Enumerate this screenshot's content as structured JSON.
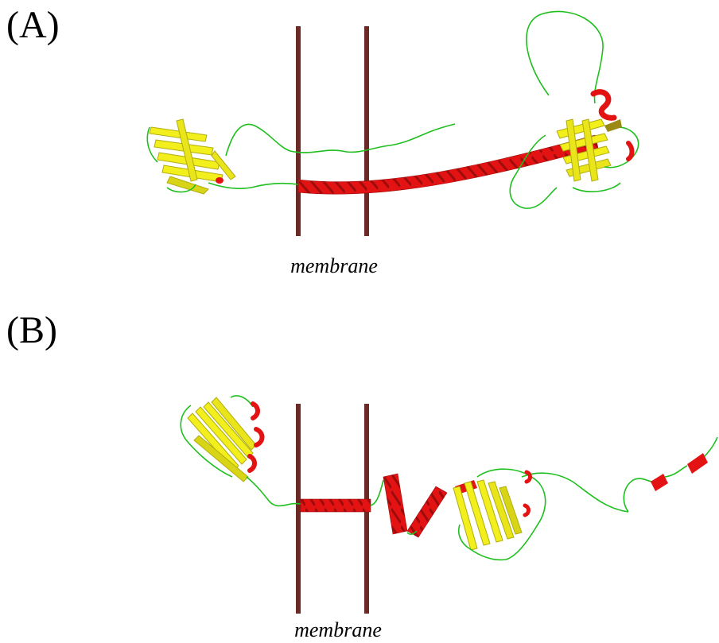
{
  "panels": [
    {
      "label": "(A)",
      "membrane_label": "membrane"
    },
    {
      "label": "(B)",
      "membrane_label": "membrane"
    }
  ],
  "colors": {
    "membrane": "#6b2a26",
    "helix": "#e31313",
    "helix_dark": "#9e0b0b",
    "sheet": "#f2ef1c",
    "sheet_dark": "#b1ad10",
    "coil": "#1fbf1f"
  }
}
